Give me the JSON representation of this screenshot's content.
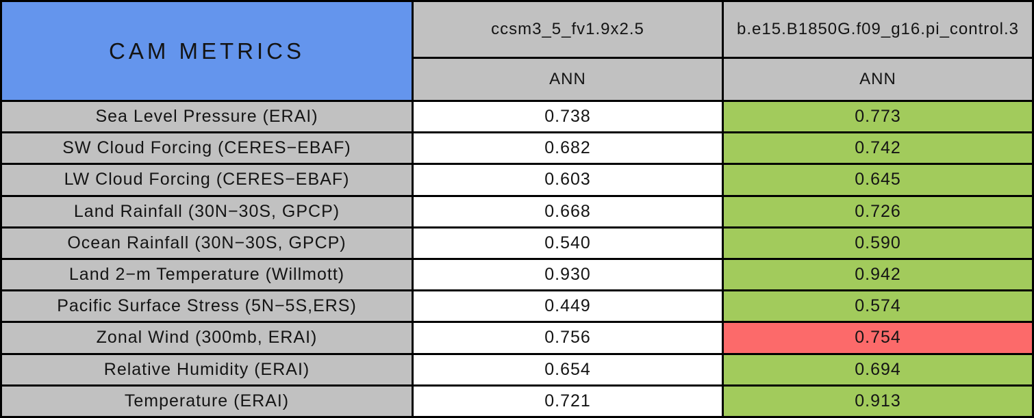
{
  "title": "CAM METRICS",
  "columns": [
    {
      "model": "ccsm3_5_fv1.9x2.5",
      "season": "ANN"
    },
    {
      "model": "b.e15.B1850G.f09_g16.pi_control.3",
      "season": "ANN"
    }
  ],
  "rows": [
    {
      "label": "Sea Level Pressure (ERAI)",
      "values": [
        {
          "text": "0.738",
          "status": "neutral"
        },
        {
          "text": "0.773",
          "status": "better"
        }
      ]
    },
    {
      "label": "SW Cloud Forcing (CERES−EBAF)",
      "values": [
        {
          "text": "0.682",
          "status": "neutral"
        },
        {
          "text": "0.742",
          "status": "better"
        }
      ]
    },
    {
      "label": "LW Cloud Forcing (CERES−EBAF)",
      "values": [
        {
          "text": "0.603",
          "status": "neutral"
        },
        {
          "text": "0.645",
          "status": "better"
        }
      ]
    },
    {
      "label": "Land Rainfall (30N−30S, GPCP)",
      "values": [
        {
          "text": "0.668",
          "status": "neutral"
        },
        {
          "text": "0.726",
          "status": "better"
        }
      ]
    },
    {
      "label": "Ocean Rainfall (30N−30S, GPCP)",
      "values": [
        {
          "text": "0.540",
          "status": "neutral"
        },
        {
          "text": "0.590",
          "status": "better"
        }
      ]
    },
    {
      "label": "Land 2−m Temperature (Willmott)",
      "values": [
        {
          "text": "0.930",
          "status": "neutral"
        },
        {
          "text": "0.942",
          "status": "better"
        }
      ]
    },
    {
      "label": "Pacific Surface Stress (5N−5S,ERS)",
      "values": [
        {
          "text": "0.449",
          "status": "neutral"
        },
        {
          "text": "0.574",
          "status": "better"
        }
      ]
    },
    {
      "label": "Zonal Wind (300mb, ERAI)",
      "values": [
        {
          "text": "0.756",
          "status": "neutral"
        },
        {
          "text": "0.754",
          "status": "worse"
        }
      ]
    },
    {
      "label": "Relative Humidity (ERAI)",
      "values": [
        {
          "text": "0.654",
          "status": "neutral"
        },
        {
          "text": "0.694",
          "status": "better"
        }
      ]
    },
    {
      "label": "Temperature (ERAI)",
      "values": [
        {
          "text": "0.721",
          "status": "neutral"
        },
        {
          "text": "0.913",
          "status": "better"
        }
      ]
    }
  ],
  "colors": {
    "blue": "#6495ED",
    "gray": "#C1C1C1",
    "green": "#A2CB5C",
    "red": "#FC6A6A",
    "white": "#FFFFFF",
    "border": "#000000"
  },
  "chart_data": {
    "type": "table",
    "title": "CAM METRICS",
    "categories": [
      "Sea Level Pressure (ERAI)",
      "SW Cloud Forcing (CERES−EBAF)",
      "LW Cloud Forcing (CERES−EBAF)",
      "Land Rainfall (30N−30S, GPCP)",
      "Ocean Rainfall (30N−30S, GPCP)",
      "Land 2−m Temperature (Willmott)",
      "Pacific Surface Stress (5N−5S,ERS)",
      "Zonal Wind (300mb, ERAI)",
      "Relative Humidity (ERAI)",
      "Temperature (ERAI)"
    ],
    "series": [
      {
        "name": "ccsm3_5_fv1.9x2.5",
        "season": "ANN",
        "values": [
          0.738,
          0.682,
          0.603,
          0.668,
          0.54,
          0.93,
          0.449,
          0.756,
          0.654,
          0.721
        ],
        "cell_status": [
          "neutral",
          "neutral",
          "neutral",
          "neutral",
          "neutral",
          "neutral",
          "neutral",
          "neutral",
          "neutral",
          "neutral"
        ]
      },
      {
        "name": "b.e15.B1850G.f09_g16.pi_control.3",
        "season": "ANN",
        "values": [
          0.773,
          0.742,
          0.645,
          0.726,
          0.59,
          0.942,
          0.574,
          0.754,
          0.694,
          0.913
        ],
        "cell_status": [
          "better",
          "better",
          "better",
          "better",
          "better",
          "better",
          "better",
          "worse",
          "better",
          "better"
        ]
      }
    ],
    "layout": "first column metric names on gray, value cells colored green (better) or red (worse); blue title cell spans two header rows"
  }
}
